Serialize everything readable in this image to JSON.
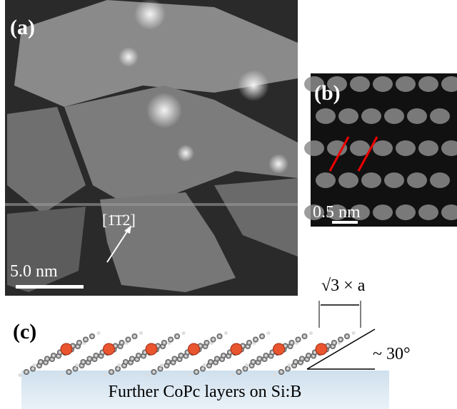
{
  "panel_a": {
    "label": "(a)",
    "direction": "[1̄1̄2]",
    "scale_bar": "5.0 nm"
  },
  "panel_b": {
    "label": "(b)",
    "scale_bar": "0.5 nm"
  },
  "panel_c": {
    "label": "(c)",
    "spacing": "√3 × a",
    "angle": "~ 30°",
    "substrate": "Further CoPc layers on Si:B"
  }
}
